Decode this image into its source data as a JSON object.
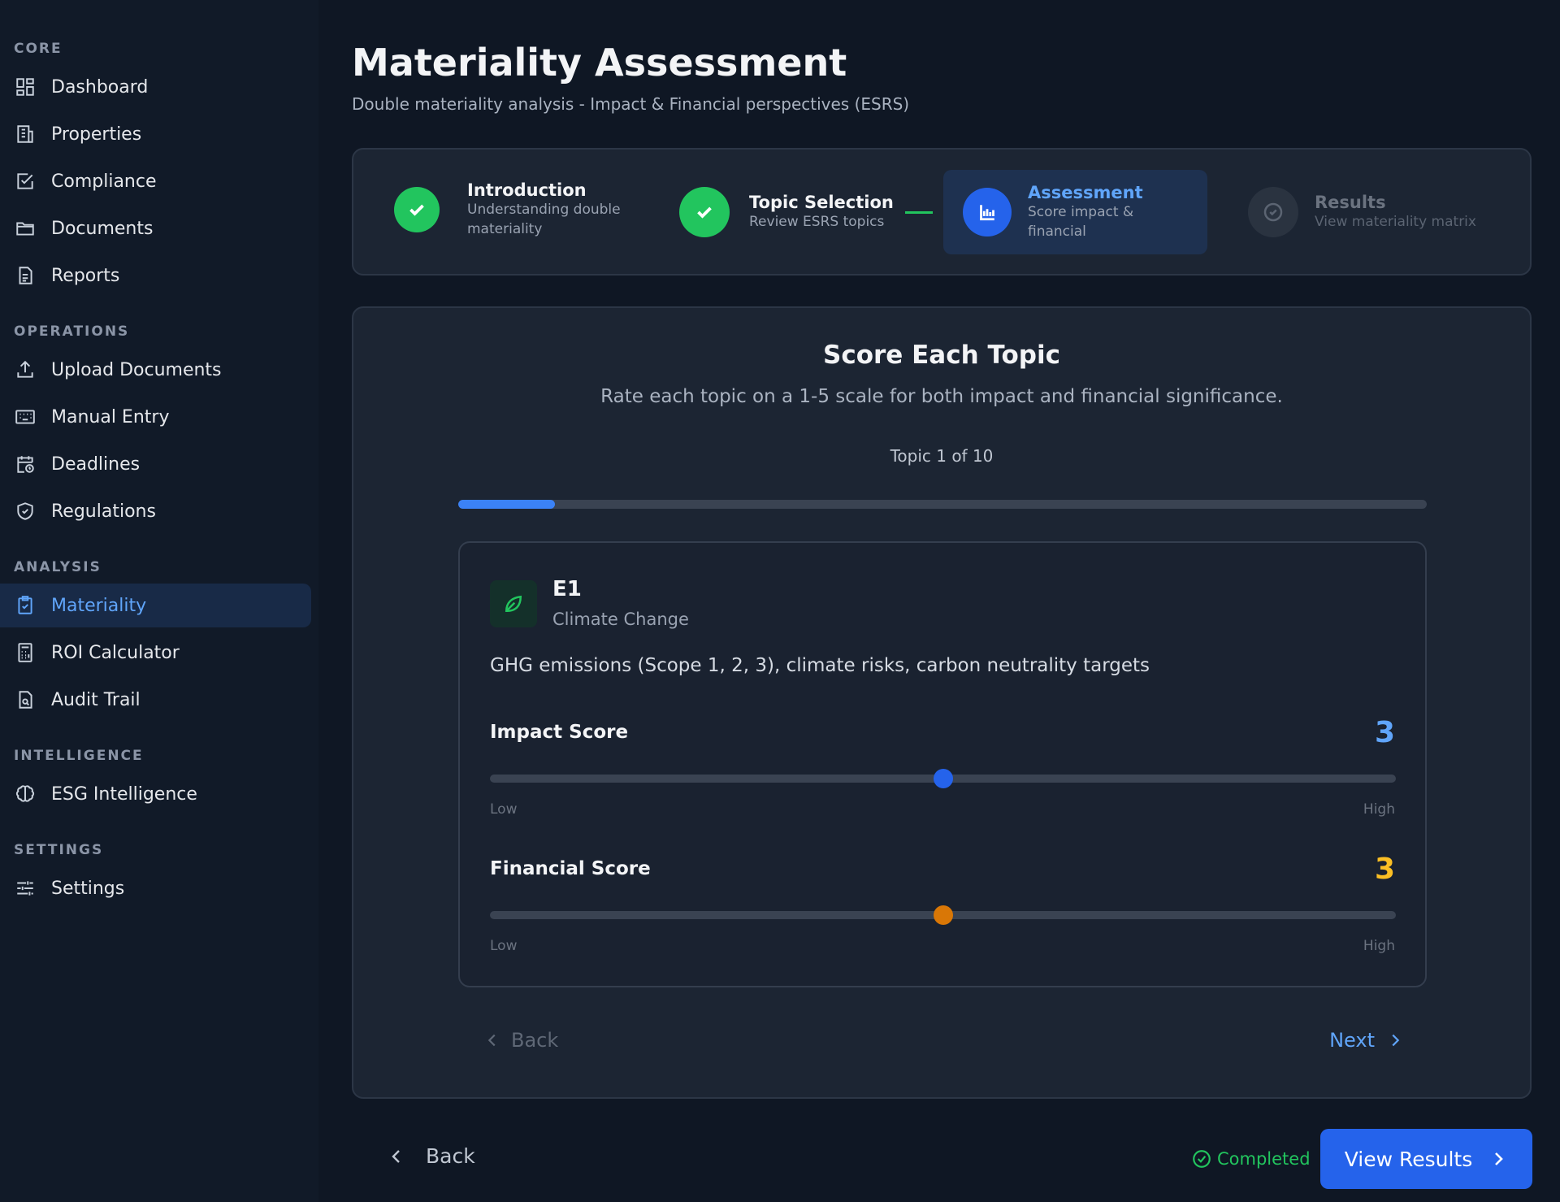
{
  "sidebar": {
    "sections": [
      {
        "title": "CORE",
        "items": [
          {
            "label": "Dashboard",
            "icon": "dashboard-icon"
          },
          {
            "label": "Properties",
            "icon": "building-icon"
          },
          {
            "label": "Compliance",
            "icon": "checkbox-icon"
          },
          {
            "label": "Documents",
            "icon": "folder-icon"
          },
          {
            "label": "Reports",
            "icon": "file-text-icon"
          }
        ]
      },
      {
        "title": "OPERATIONS",
        "items": [
          {
            "label": "Upload Documents",
            "icon": "upload-icon"
          },
          {
            "label": "Manual Entry",
            "icon": "keyboard-icon"
          },
          {
            "label": "Deadlines",
            "icon": "calendar-clock-icon"
          },
          {
            "label": "Regulations",
            "icon": "shield-icon"
          }
        ]
      },
      {
        "title": "ANALYSIS",
        "items": [
          {
            "label": "Materiality",
            "icon": "clipboard-check-icon",
            "active": true
          },
          {
            "label": "ROI Calculator",
            "icon": "calculator-icon"
          },
          {
            "label": "Audit Trail",
            "icon": "file-search-icon"
          }
        ]
      },
      {
        "title": "INTELLIGENCE",
        "items": [
          {
            "label": "ESG Intelligence",
            "icon": "brain-icon"
          }
        ]
      },
      {
        "title": "SETTINGS",
        "items": [
          {
            "label": "Settings",
            "icon": "sliders-icon"
          }
        ]
      }
    ]
  },
  "header": {
    "title": "Materiality Assessment",
    "subtitle": "Double materiality analysis - Impact & Financial perspectives (ESRS)"
  },
  "stepper": {
    "steps": [
      {
        "title": "Introduction",
        "desc_line1": "Understanding double",
        "desc_line2": "materiality",
        "status": "done"
      },
      {
        "title": "Topic Selection",
        "desc_line1": "Review ESRS topics",
        "status": "done"
      },
      {
        "title": "Assessment",
        "desc_line1": "Score impact &",
        "desc_line2": "financial",
        "status": "current"
      },
      {
        "title": "Results",
        "desc_line1": "View materiality matrix",
        "status": "pending"
      }
    ]
  },
  "main": {
    "title": "Score Each Topic",
    "subtitle": "Rate each topic on a 1-5 scale for both impact and financial significance.",
    "topic_counter": "Topic 1 of 10",
    "progress_fraction": 0.1,
    "topic": {
      "code": "E1",
      "name": "Climate Change",
      "description": "GHG emissions (Scope 1, 2, 3), climate risks, carbon neutrality targets",
      "icon": "leaf-icon"
    },
    "impact": {
      "label": "Impact Score",
      "value": "3",
      "level": 3,
      "min": 1,
      "max": 5,
      "low": "Low",
      "high": "High",
      "color": "#60a5fa",
      "thumb_color": "#2563eb"
    },
    "financial": {
      "label": "Financial Score",
      "value": "3",
      "level": 3,
      "min": 1,
      "max": 5,
      "low": "Low",
      "high": "High",
      "color": "#fbbf24",
      "thumb_color": "#d97706"
    },
    "back_label": "Back",
    "next_label": "Next"
  },
  "footer": {
    "back_label": "Back",
    "completed_label": "Completed",
    "view_results_label": "View Results"
  },
  "colors": {
    "accent": "#2563eb",
    "success": "#22c55e",
    "background": "#0f1724",
    "card": "#1c2533"
  }
}
